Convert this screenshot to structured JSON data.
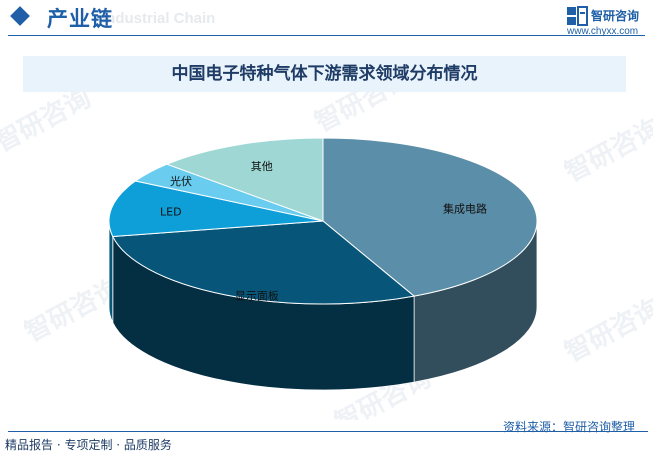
{
  "header": {
    "title": "产业链",
    "ghost_text": "Industrial Chain"
  },
  "brand": {
    "name": "智研咨询",
    "url": "www.chyxx.com",
    "color": "#1f5fa8"
  },
  "watermark_text": "智研咨询",
  "chart_data": {
    "type": "pie",
    "title": "中国电子特种气体下游需求领域分布情况",
    "slices": [
      {
        "label": "集成电路",
        "value": 43,
        "color": "#5b8ea8"
      },
      {
        "label": "显示面板",
        "value": 29,
        "color": "#07567a"
      },
      {
        "label": "LED",
        "value": 11,
        "color": "#0e9fd8"
      },
      {
        "label": "光伏",
        "value": 4,
        "color": "#6acdf0"
      },
      {
        "label": "其他",
        "value": 13,
        "color": "#9ed7d3"
      }
    ],
    "start_angle_deg": -90,
    "legend": "none",
    "style": "3d"
  },
  "footer": {
    "source": "资料来源：智研咨询整理",
    "tagline": "精品报告 · 专项定制 · 品质服务"
  }
}
